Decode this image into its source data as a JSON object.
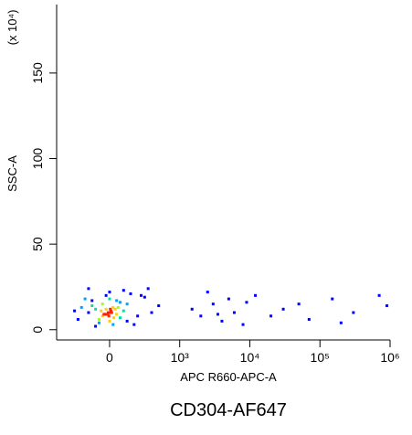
{
  "chart_data": {
    "type": "scatter",
    "title": "CD304-AF647",
    "xlabel": "APC R660-APC-A",
    "ylabel": "SSC-A",
    "yunit": "(x 10⁴)",
    "xscale": "biexponential",
    "xlim": [
      -755,
      1000000
    ],
    "ylim": [
      -6,
      190
    ],
    "xticks": [
      0,
      {
        "value": 1000,
        "label": "10³"
      },
      {
        "value": 10000,
        "label": "10⁴"
      },
      {
        "value": 100000,
        "label": "10⁵"
      },
      {
        "value": 1000000,
        "label": "10⁶"
      }
    ],
    "yticks": [
      0,
      50,
      100,
      150
    ],
    "density_colors": [
      "#0000ff",
      "#00a0ff",
      "#00e0a0",
      "#a0ff00",
      "#ffd000",
      "#ff2000"
    ],
    "x": [
      -300,
      -200,
      -100,
      0,
      100,
      200,
      -250,
      -150,
      -50,
      50,
      150,
      250,
      -350,
      -50,
      0,
      50,
      -100,
      100,
      0,
      -20,
      20,
      -80,
      80,
      -150,
      150,
      -400,
      400,
      300,
      -300,
      500,
      600,
      700,
      -500,
      -450,
      350,
      -200,
      200,
      0,
      -60,
      60,
      -120,
      120,
      30,
      -30,
      10,
      -10,
      250,
      -250,
      450,
      550,
      1500,
      2000,
      3000,
      4000,
      5000,
      6000,
      8000,
      12000,
      20000,
      30000,
      50000,
      70000,
      150000,
      200000,
      300000,
      900000,
      2500,
      3500,
      9000,
      700000
    ],
    "y": [
      10,
      12,
      8,
      10,
      9,
      11,
      14,
      6,
      12,
      13,
      7,
      15,
      18,
      20,
      5,
      3,
      15,
      17,
      22,
      10,
      11,
      9,
      12,
      4,
      16,
      13,
      8,
      21,
      24,
      19,
      10,
      14,
      11,
      6,
      3,
      2,
      23,
      18,
      9,
      7,
      11,
      13,
      10,
      9,
      12,
      8,
      5,
      17,
      20,
      24,
      12,
      8,
      15,
      5,
      18,
      10,
      3,
      20,
      8,
      12,
      15,
      6,
      18,
      4,
      10,
      14,
      22,
      9,
      16,
      20
    ]
  }
}
